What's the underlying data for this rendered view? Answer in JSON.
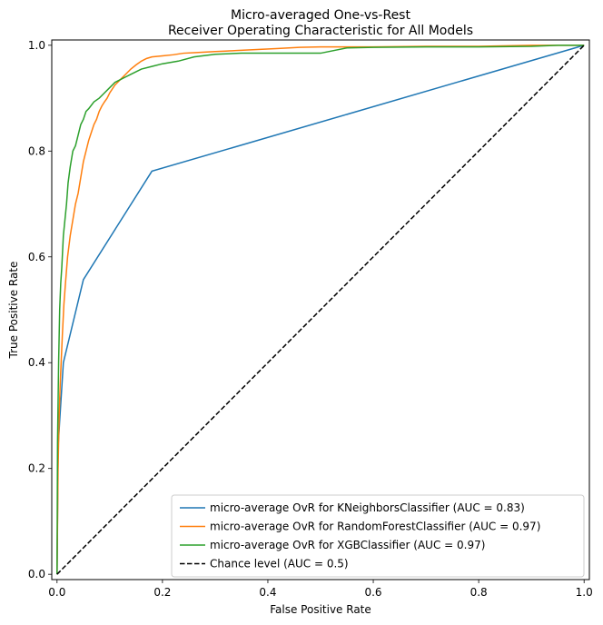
{
  "chart_data": {
    "type": "line",
    "title_line1": "Micro-averaged One-vs-Rest",
    "title_line2": "Receiver Operating Characteristic for All Models",
    "xlabel": "False Positive Rate",
    "ylabel": "True Positive Rate",
    "xlim": [
      -0.01,
      1.01
    ],
    "ylim": [
      -0.01,
      1.01
    ],
    "xticks": [
      "0.0",
      "0.2",
      "0.4",
      "0.6",
      "0.8",
      "1.0"
    ],
    "yticks": [
      "0.0",
      "0.2",
      "0.4",
      "0.6",
      "0.8",
      "1.0"
    ],
    "grid": false,
    "legend_position": "lower-right",
    "series": [
      {
        "name": "micro-average OvR for KNeighborsClassifier (AUC = 0.83)",
        "color": "#1f77b4",
        "dashed": false,
        "x": [
          0.0,
          0.002,
          0.005,
          0.012,
          0.05,
          0.18,
          1.0
        ],
        "y": [
          0.0,
          0.24,
          0.29,
          0.4,
          0.557,
          0.762,
          1.0
        ]
      },
      {
        "name": "micro-average OvR for RandomForestClassifier (AUC = 0.97)",
        "color": "#ff7f0e",
        "dashed": false,
        "x": [
          0.0,
          0.002,
          0.004,
          0.006,
          0.01,
          0.013,
          0.016,
          0.02,
          0.025,
          0.03,
          0.035,
          0.04,
          0.045,
          0.05,
          0.055,
          0.06,
          0.065,
          0.07,
          0.075,
          0.08,
          0.085,
          0.09,
          0.095,
          0.1,
          0.11,
          0.12,
          0.13,
          0.14,
          0.15,
          0.16,
          0.17,
          0.18,
          0.2,
          0.22,
          0.24,
          0.26,
          0.28,
          0.3,
          0.32,
          0.34,
          0.38,
          0.42,
          0.46,
          0.5,
          0.55,
          0.6,
          0.7,
          0.8,
          0.9,
          0.94,
          0.95,
          1.0
        ],
        "y": [
          0.0,
          0.2,
          0.3,
          0.36,
          0.45,
          0.51,
          0.55,
          0.6,
          0.64,
          0.67,
          0.7,
          0.72,
          0.75,
          0.78,
          0.8,
          0.82,
          0.835,
          0.85,
          0.86,
          0.875,
          0.885,
          0.893,
          0.9,
          0.91,
          0.925,
          0.935,
          0.945,
          0.955,
          0.963,
          0.97,
          0.975,
          0.978,
          0.98,
          0.982,
          0.985,
          0.986,
          0.987,
          0.988,
          0.989,
          0.99,
          0.992,
          0.994,
          0.996,
          0.997,
          0.997,
          0.997,
          0.998,
          0.998,
          1.0,
          1.0,
          1.0,
          1.0
        ]
      },
      {
        "name": "micro-average OvR for XGBClassifier (AUC = 0.97)",
        "color": "#2ca02c",
        "dashed": false,
        "x": [
          0.0,
          0.001,
          0.003,
          0.005,
          0.007,
          0.009,
          0.012,
          0.015,
          0.018,
          0.021,
          0.025,
          0.03,
          0.035,
          0.04,
          0.045,
          0.05,
          0.055,
          0.06,
          0.07,
          0.08,
          0.09,
          0.1,
          0.11,
          0.12,
          0.13,
          0.14,
          0.16,
          0.18,
          0.2,
          0.23,
          0.26,
          0.3,
          0.35,
          0.4,
          0.5,
          0.55,
          0.6,
          0.7,
          0.8,
          0.9,
          0.95,
          1.0
        ],
        "y": [
          0.0,
          0.25,
          0.4,
          0.5,
          0.55,
          0.58,
          0.64,
          0.67,
          0.7,
          0.74,
          0.77,
          0.8,
          0.81,
          0.83,
          0.85,
          0.86,
          0.875,
          0.88,
          0.893,
          0.9,
          0.91,
          0.92,
          0.93,
          0.935,
          0.94,
          0.945,
          0.955,
          0.96,
          0.965,
          0.97,
          0.978,
          0.983,
          0.985,
          0.985,
          0.985,
          0.995,
          0.996,
          0.997,
          0.997,
          0.998,
          1.0,
          1.0
        ]
      },
      {
        "name": "Chance level (AUC = 0.5)",
        "color": "#000000",
        "dashed": true,
        "x": [
          0.0,
          1.0
        ],
        "y": [
          0.0,
          1.0
        ]
      }
    ]
  }
}
